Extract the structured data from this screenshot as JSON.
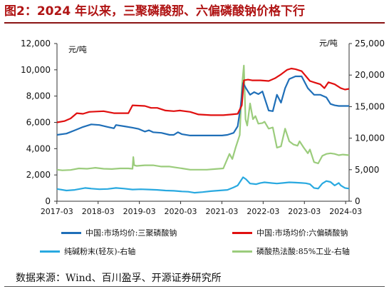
{
  "title": "图2：2024 年以来，三聚磷酸那、六偏磷酸钠价格下行",
  "source": "数据来源：Wind、百川盈孚、开源证券研究所",
  "chart_data": {
    "type": "line",
    "left_unit": "元/吨",
    "right_unit": "元/吨",
    "ylim_left": [
      0,
      12000
    ],
    "ylim_right": [
      0,
      25000
    ],
    "left_ticks": [
      "0",
      "2,000",
      "4,000",
      "6,000",
      "8,000",
      "10,000",
      "12,000"
    ],
    "right_ticks": [
      "0",
      "5,000",
      "10,000",
      "15,000",
      "20,000",
      "25,000"
    ],
    "x_ticks": [
      "2017-03",
      "2018-03",
      "2019-03",
      "2020-03",
      "2021-03",
      "2022-03",
      "2023-03",
      "2024-03"
    ],
    "xlim": [
      2017.17,
      2024.25
    ],
    "series": [
      {
        "name": "中国:市场均价:三聚磷酸钠",
        "axis": "left",
        "color": "#1f6fb8",
        "points": [
          [
            2017.17,
            5050
          ],
          [
            2017.4,
            5150
          ],
          [
            2017.6,
            5400
          ],
          [
            2017.8,
            5650
          ],
          [
            2018.0,
            5850
          ],
          [
            2018.2,
            5800
          ],
          [
            2018.4,
            5650
          ],
          [
            2018.55,
            5550
          ],
          [
            2018.6,
            5800
          ],
          [
            2018.8,
            5700
          ],
          [
            2019.0,
            5600
          ],
          [
            2019.15,
            5500
          ],
          [
            2019.3,
            5300
          ],
          [
            2019.4,
            5400
          ],
          [
            2019.5,
            5250
          ],
          [
            2019.7,
            5200
          ],
          [
            2019.9,
            5050
          ],
          [
            2020.0,
            5050
          ],
          [
            2020.1,
            5250
          ],
          [
            2020.2,
            5100
          ],
          [
            2020.4,
            5000
          ],
          [
            2020.6,
            5000
          ],
          [
            2020.9,
            5000
          ],
          [
            2021.17,
            5000
          ],
          [
            2021.3,
            5050
          ],
          [
            2021.45,
            5200
          ],
          [
            2021.55,
            5700
          ],
          [
            2021.62,
            7200
          ],
          [
            2021.68,
            9000
          ],
          [
            2021.75,
            8600
          ],
          [
            2021.85,
            8100
          ],
          [
            2021.95,
            8300
          ],
          [
            2022.05,
            8150
          ],
          [
            2022.15,
            8350
          ],
          [
            2022.3,
            6900
          ],
          [
            2022.4,
            6850
          ],
          [
            2022.5,
            8100
          ],
          [
            2022.6,
            7500
          ],
          [
            2022.7,
            8600
          ],
          [
            2022.8,
            9300
          ],
          [
            2022.95,
            9500
          ],
          [
            2023.1,
            9500
          ],
          [
            2023.25,
            8600
          ],
          [
            2023.4,
            8100
          ],
          [
            2023.55,
            8100
          ],
          [
            2023.7,
            7900
          ],
          [
            2023.8,
            7400
          ],
          [
            2023.9,
            7300
          ],
          [
            2024.0,
            7250
          ],
          [
            2024.25,
            7250
          ]
        ]
      },
      {
        "name": "中国:市场均价:六偏磷酸钠",
        "axis": "left",
        "color": "#e01010",
        "points": [
          [
            2017.17,
            6000
          ],
          [
            2017.35,
            6100
          ],
          [
            2017.5,
            6300
          ],
          [
            2017.65,
            6700
          ],
          [
            2017.8,
            6650
          ],
          [
            2017.95,
            6800
          ],
          [
            2018.3,
            6850
          ],
          [
            2018.55,
            6700
          ],
          [
            2018.9,
            6700
          ],
          [
            2019.0,
            7300
          ],
          [
            2019.3,
            7250
          ],
          [
            2019.45,
            7100
          ],
          [
            2019.6,
            7100
          ],
          [
            2019.7,
            7000
          ],
          [
            2019.8,
            6900
          ],
          [
            2020.0,
            6850
          ],
          [
            2020.15,
            6900
          ],
          [
            2020.4,
            6800
          ],
          [
            2020.6,
            6600
          ],
          [
            2020.9,
            6550
          ],
          [
            2021.2,
            6550
          ],
          [
            2021.4,
            6600
          ],
          [
            2021.55,
            6650
          ],
          [
            2021.65,
            7300
          ],
          [
            2021.7,
            9200
          ],
          [
            2021.8,
            9250
          ],
          [
            2021.9,
            9200
          ],
          [
            2022.1,
            9200
          ],
          [
            2022.3,
            9150
          ],
          [
            2022.45,
            9350
          ],
          [
            2022.6,
            9650
          ],
          [
            2022.75,
            10000
          ],
          [
            2022.85,
            10100
          ],
          [
            2022.95,
            10050
          ],
          [
            2023.1,
            9900
          ],
          [
            2023.3,
            9150
          ],
          [
            2023.45,
            9000
          ],
          [
            2023.55,
            8900
          ],
          [
            2023.65,
            8600
          ],
          [
            2023.75,
            9050
          ],
          [
            2023.9,
            8900
          ],
          [
            2024.05,
            8600
          ],
          [
            2024.15,
            8500
          ],
          [
            2024.25,
            8550
          ]
        ]
      },
      {
        "name": "纯碱粉末(轻灰)-右轴",
        "axis": "right",
        "color": "#29a9e0",
        "points": [
          [
            2017.17,
            1950
          ],
          [
            2017.4,
            1700
          ],
          [
            2017.6,
            1800
          ],
          [
            2017.85,
            2100
          ],
          [
            2018.0,
            2000
          ],
          [
            2018.2,
            1900
          ],
          [
            2018.4,
            1950
          ],
          [
            2018.6,
            2100
          ],
          [
            2018.8,
            2000
          ],
          [
            2019.0,
            1850
          ],
          [
            2019.2,
            1900
          ],
          [
            2019.4,
            1850
          ],
          [
            2019.6,
            1800
          ],
          [
            2019.8,
            1700
          ],
          [
            2020.0,
            1650
          ],
          [
            2020.2,
            1550
          ],
          [
            2020.35,
            1500
          ],
          [
            2020.5,
            1350
          ],
          [
            2020.7,
            1450
          ],
          [
            2020.9,
            1600
          ],
          [
            2021.1,
            1700
          ],
          [
            2021.3,
            1800
          ],
          [
            2021.45,
            2200
          ],
          [
            2021.55,
            2500
          ],
          [
            2021.68,
            3800
          ],
          [
            2021.75,
            3500
          ],
          [
            2021.85,
            2800
          ],
          [
            2022.0,
            2700
          ],
          [
            2022.1,
            2900
          ],
          [
            2022.2,
            3000
          ],
          [
            2022.35,
            2900
          ],
          [
            2022.5,
            2800
          ],
          [
            2022.65,
            2900
          ],
          [
            2022.8,
            3000
          ],
          [
            2022.95,
            2950
          ],
          [
            2023.1,
            2900
          ],
          [
            2023.2,
            2850
          ],
          [
            2023.3,
            2700
          ],
          [
            2023.4,
            2100
          ],
          [
            2023.5,
            2000
          ],
          [
            2023.6,
            2800
          ],
          [
            2023.7,
            3200
          ],
          [
            2023.8,
            3050
          ],
          [
            2023.9,
            2500
          ],
          [
            2024.0,
            2900
          ],
          [
            2024.05,
            2500
          ],
          [
            2024.15,
            2100
          ],
          [
            2024.25,
            2000
          ]
        ]
      },
      {
        "name": "磷酸热法酸:85%工业-右轴",
        "axis": "right",
        "color": "#9bcc7c",
        "points": [
          [
            2017.17,
            5000
          ],
          [
            2017.3,
            4900
          ],
          [
            2017.5,
            4950
          ],
          [
            2017.7,
            5200
          ],
          [
            2017.9,
            5150
          ],
          [
            2018.1,
            5300
          ],
          [
            2018.3,
            5150
          ],
          [
            2018.5,
            5100
          ],
          [
            2018.7,
            5200
          ],
          [
            2018.9,
            5200
          ],
          [
            2019.0,
            5150
          ],
          [
            2019.02,
            7000
          ],
          [
            2019.04,
            5700
          ],
          [
            2019.1,
            5600
          ],
          [
            2019.3,
            5700
          ],
          [
            2019.5,
            5700
          ],
          [
            2019.7,
            5500
          ],
          [
            2019.9,
            5500
          ],
          [
            2020.0,
            5400
          ],
          [
            2020.2,
            5200
          ],
          [
            2020.4,
            5000
          ],
          [
            2020.6,
            5000
          ],
          [
            2020.8,
            5000
          ],
          [
            2021.0,
            5100
          ],
          [
            2021.2,
            5200
          ],
          [
            2021.35,
            7500
          ],
          [
            2021.42,
            6700
          ],
          [
            2021.5,
            8500
          ],
          [
            2021.6,
            10500
          ],
          [
            2021.65,
            18000
          ],
          [
            2021.7,
            21500
          ],
          [
            2021.74,
            13000
          ],
          [
            2021.78,
            12000
          ],
          [
            2021.85,
            15500
          ],
          [
            2021.92,
            13000
          ],
          [
            2021.98,
            13500
          ],
          [
            2022.05,
            12300
          ],
          [
            2022.15,
            12400
          ],
          [
            2022.2,
            12600
          ],
          [
            2022.3,
            11500
          ],
          [
            2022.4,
            11700
          ],
          [
            2022.5,
            8500
          ],
          [
            2022.6,
            8700
          ],
          [
            2022.7,
            11500
          ],
          [
            2022.8,
            9500
          ],
          [
            2022.9,
            9000
          ],
          [
            2023.0,
            8800
          ],
          [
            2023.05,
            9500
          ],
          [
            2023.15,
            8500
          ],
          [
            2023.25,
            7600
          ],
          [
            2023.3,
            8200
          ],
          [
            2023.4,
            6200
          ],
          [
            2023.5,
            6000
          ],
          [
            2023.6,
            7200
          ],
          [
            2023.7,
            7500
          ],
          [
            2023.8,
            7600
          ],
          [
            2023.9,
            7500
          ],
          [
            2024.0,
            7300
          ],
          [
            2024.1,
            7400
          ],
          [
            2024.25,
            7300
          ]
        ]
      }
    ]
  },
  "legend": [
    {
      "label": "中国:市场均价:三聚磷酸钠",
      "color": "#1f6fb8"
    },
    {
      "label": "中国:市场均价:六偏磷酸钠",
      "color": "#e01010"
    },
    {
      "label": "纯碱粉末(轻灰)-右轴",
      "color": "#29a9e0"
    },
    {
      "label": "磷酸热法酸:85%工业-右轴",
      "color": "#9bcc7c"
    }
  ]
}
